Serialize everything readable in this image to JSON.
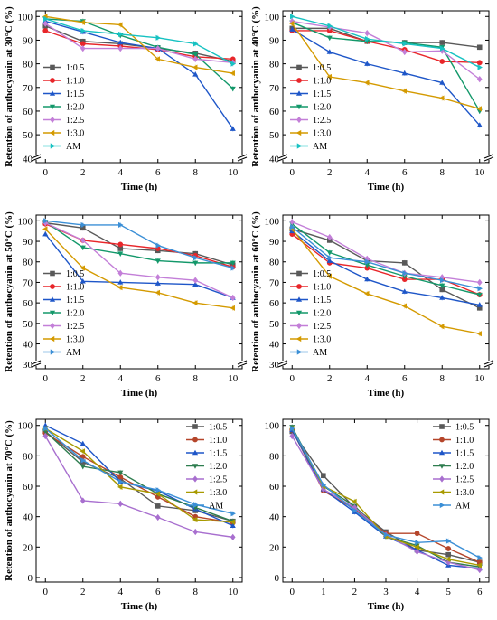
{
  "chart_data": [
    {
      "type": "line",
      "xlabel": "Time (h)",
      "ylabel": "Retention of anthocyanin at 30°C (%)",
      "ylim": [
        40,
        100
      ],
      "yticks": [
        "40",
        "50",
        "60",
        "70",
        "80",
        "90",
        "100"
      ],
      "x": [
        0,
        2,
        4,
        6,
        8,
        10
      ],
      "xticks": [
        "0",
        "2",
        "4",
        "6",
        "8",
        "10"
      ],
      "legend_position": "bottom-left",
      "series": [
        {
          "name": "1:0.5",
          "color": "#595959",
          "marker": "square",
          "values": [
            96,
            89.5,
            88.5,
            86.5,
            84.5,
            81
          ]
        },
        {
          "name": "1:1.0",
          "color": "#e8262a",
          "marker": "circle",
          "values": [
            94,
            88.5,
            87.5,
            86,
            83,
            82
          ]
        },
        {
          "name": "1:1.5",
          "color": "#1e56c8",
          "marker": "triangle-up",
          "values": [
            98,
            93.5,
            89,
            86.5,
            75.5,
            52.5
          ]
        },
        {
          "name": "1:2.0",
          "color": "#13986a",
          "marker": "triangle-down",
          "values": [
            99,
            98,
            92,
            87,
            84,
            69.5
          ]
        },
        {
          "name": "1:2.5",
          "color": "#c37fd8",
          "marker": "diamond",
          "values": [
            97,
            86.5,
            86.5,
            86.5,
            82,
            80.5
          ]
        },
        {
          "name": "1:3.0",
          "color": "#d49a00",
          "marker": "triangle-left",
          "values": [
            100,
            97.5,
            96.5,
            82,
            78.5,
            76
          ]
        },
        {
          "name": "AM",
          "color": "#17c2c2",
          "marker": "triangle-right",
          "values": [
            99,
            94,
            92.5,
            91,
            88.5,
            80
          ]
        }
      ]
    },
    {
      "type": "line",
      "xlabel": "Time (h)",
      "ylabel": "Retention of anthocyanin at 40°C (%)",
      "ylim": [
        40,
        100
      ],
      "yticks": [
        "40",
        "50",
        "60",
        "70",
        "80",
        "90",
        "100"
      ],
      "x": [
        0,
        2,
        4,
        6,
        8,
        10
      ],
      "xticks": [
        "0",
        "2",
        "4",
        "6",
        "8",
        "10"
      ],
      "legend_position": "bottom-left",
      "series": [
        {
          "name": "1:0.5",
          "color": "#595959",
          "marker": "square",
          "values": [
            95,
            95,
            89.5,
            89,
            89,
            87
          ]
        },
        {
          "name": "1:1.0",
          "color": "#e8262a",
          "marker": "circle",
          "values": [
            94,
            94,
            89.5,
            86,
            81,
            80.5
          ]
        },
        {
          "name": "1:1.5",
          "color": "#1e56c8",
          "marker": "triangle-up",
          "values": [
            94.5,
            85,
            80,
            76,
            72,
            54
          ]
        },
        {
          "name": "1:2.0",
          "color": "#13986a",
          "marker": "triangle-down",
          "values": [
            97.5,
            91,
            89.5,
            89,
            87,
            60
          ]
        },
        {
          "name": "1:2.5",
          "color": "#c37fd8",
          "marker": "diamond",
          "values": [
            98,
            95.5,
            93,
            85,
            85.5,
            73.5
          ]
        },
        {
          "name": "1:3.0",
          "color": "#d49a00",
          "marker": "triangle-left",
          "values": [
            97,
            74.5,
            72,
            68.5,
            65.5,
            61
          ]
        },
        {
          "name": "AM",
          "color": "#17c2c2",
          "marker": "triangle-right",
          "values": [
            100,
            96,
            90.5,
            88.5,
            86.5,
            78.5
          ]
        }
      ]
    },
    {
      "type": "line",
      "xlabel": "Time (h)",
      "ylabel": "Retention of anthocyanin at 50°C (%)",
      "ylim": [
        30,
        100
      ],
      "yticks": [
        "30",
        "40",
        "50",
        "60",
        "70",
        "80",
        "90",
        "100"
      ],
      "x": [
        0,
        2,
        4,
        6,
        8,
        10
      ],
      "xticks": [
        "0",
        "2",
        "4",
        "6",
        "8",
        "10"
      ],
      "legend_position": "bottom-left",
      "series": [
        {
          "name": "1:0.5",
          "color": "#595959",
          "marker": "square",
          "values": [
            99,
            96.5,
            86.5,
            85.5,
            84,
            78.5
          ]
        },
        {
          "name": "1:1.0",
          "color": "#e8262a",
          "marker": "circle",
          "values": [
            98.5,
            90.5,
            88.5,
            86.5,
            83,
            77.5
          ]
        },
        {
          "name": "1:1.5",
          "color": "#1e56c8",
          "marker": "triangle-up",
          "values": [
            93.5,
            70.5,
            70,
            69.5,
            69,
            62.5
          ]
        },
        {
          "name": "1:2.0",
          "color": "#13986a",
          "marker": "triangle-down",
          "values": [
            99.5,
            87,
            84,
            80.5,
            79.5,
            79.5
          ]
        },
        {
          "name": "1:2.5",
          "color": "#c37fd8",
          "marker": "diamond",
          "values": [
            99,
            90.5,
            74.5,
            72.5,
            71,
            62.5
          ]
        },
        {
          "name": "1:3.0",
          "color": "#d49a00",
          "marker": "triangle-left",
          "values": [
            96,
            77,
            67.5,
            65,
            60,
            57.5
          ]
        },
        {
          "name": "AM",
          "color": "#3b8fd6",
          "marker": "triangle-right",
          "values": [
            100,
            98,
            98,
            88,
            82,
            77
          ]
        }
      ]
    },
    {
      "type": "line",
      "xlabel": "Time (h)",
      "ylabel": "Retention of anthocyanin at 60°C (%)",
      "ylim": [
        30,
        100
      ],
      "yticks": [
        "30",
        "40",
        "50",
        "60",
        "70",
        "80",
        "90",
        "100"
      ],
      "x": [
        0,
        2,
        4,
        6,
        8,
        10
      ],
      "xticks": [
        "0",
        "2",
        "4",
        "6",
        "8",
        "10"
      ],
      "legend_position": "bottom-left",
      "series": [
        {
          "name": "1:0.5",
          "color": "#595959",
          "marker": "square",
          "values": [
            96,
            90.5,
            80.5,
            79.5,
            66.5,
            57.5
          ]
        },
        {
          "name": "1:1.0",
          "color": "#e8262a",
          "marker": "circle",
          "values": [
            93.5,
            79.5,
            77,
            71.5,
            71.5,
            64
          ]
        },
        {
          "name": "1:1.5",
          "color": "#1e56c8",
          "marker": "triangle-up",
          "values": [
            95,
            80.5,
            71.5,
            65.5,
            62.5,
            59
          ]
        },
        {
          "name": "1:2.0",
          "color": "#13986a",
          "marker": "triangle-down",
          "values": [
            98.5,
            84.5,
            78.5,
            73,
            68.5,
            64
          ]
        },
        {
          "name": "1:2.5",
          "color": "#c37fd8",
          "marker": "diamond",
          "values": [
            99.5,
            92,
            81.5,
            74.5,
            72.5,
            70
          ]
        },
        {
          "name": "1:3.0",
          "color": "#d49a00",
          "marker": "triangle-left",
          "values": [
            96,
            73,
            64.5,
            58.5,
            48.5,
            45
          ]
        },
        {
          "name": "AM",
          "color": "#3b8fd6",
          "marker": "triangle-right",
          "values": [
            97,
            82,
            80,
            74.5,
            71,
            67
          ]
        }
      ]
    },
    {
      "type": "line",
      "xlabel": "Time (h)",
      "ylabel": "Retention of anthocyanin at 70°C (%)",
      "ylim": [
        0,
        100
      ],
      "yticks": [
        "0",
        "20",
        "40",
        "60",
        "80",
        "100"
      ],
      "x": [
        0,
        2,
        4,
        6,
        8,
        10
      ],
      "xticks": [
        "0",
        "2",
        "4",
        "6",
        "8",
        "10"
      ],
      "legend_position": "top-right",
      "series": [
        {
          "name": "1:0.5",
          "color": "#595959",
          "marker": "square",
          "values": [
            96,
            76,
            65,
            47,
            44,
            37
          ]
        },
        {
          "name": "1:1.0",
          "color": "#b5452a",
          "marker": "circle",
          "values": [
            95,
            79.5,
            66,
            53,
            40,
            36
          ]
        },
        {
          "name": "1:1.5",
          "color": "#1e56c8",
          "marker": "triangle-up",
          "values": [
            100,
            88,
            63,
            57,
            45,
            34
          ]
        },
        {
          "name": "1:2.0",
          "color": "#2e7d4f",
          "marker": "triangle-down",
          "values": [
            96,
            73,
            69,
            55,
            46,
            37
          ]
        },
        {
          "name": "1:2.5",
          "color": "#a86fcf",
          "marker": "diamond",
          "values": [
            93,
            50.5,
            48.5,
            39.5,
            30,
            26.5
          ]
        },
        {
          "name": "1:3.0",
          "color": "#a89a00",
          "marker": "triangle-left",
          "values": [
            98,
            83,
            59.5,
            55,
            38,
            36.5
          ]
        },
        {
          "name": "AM",
          "color": "#3b8fd6",
          "marker": "triangle-right",
          "values": [
            98,
            77,
            63,
            57.5,
            48,
            42
          ]
        }
      ]
    },
    {
      "type": "line",
      "xlabel": "Time (h)",
      "ylabel": "",
      "ylim": [
        0,
        100
      ],
      "yticks": [
        "0",
        "20",
        "40",
        "60",
        "80",
        "100"
      ],
      "x": [
        0,
        1,
        2,
        3,
        4,
        5,
        6
      ],
      "xticks": [
        "0",
        "1",
        "2",
        "3",
        "4",
        "5",
        "6"
      ],
      "legend_position": "top-right",
      "series": [
        {
          "name": "1:0.5",
          "color": "#595959",
          "marker": "square",
          "values": [
            96,
            67,
            46,
            30,
            18,
            15,
            10
          ]
        },
        {
          "name": "1:1.0",
          "color": "#b5452a",
          "marker": "circle",
          "values": [
            97,
            57,
            45,
            29,
            29,
            19,
            10
          ]
        },
        {
          "name": "1:1.5",
          "color": "#1e56c8",
          "marker": "triangle-up",
          "values": [
            97,
            58,
            43,
            27,
            18,
            8,
            6
          ]
        },
        {
          "name": "1:2.0",
          "color": "#2e7d4f",
          "marker": "triangle-down",
          "values": [
            99,
            60,
            47,
            27,
            21,
            10,
            7
          ]
        },
        {
          "name": "1:2.5",
          "color": "#a86fcf",
          "marker": "diamond",
          "values": [
            93,
            58,
            46,
            28,
            17,
            10,
            5
          ]
        },
        {
          "name": "1:3.0",
          "color": "#a89a00",
          "marker": "triangle-left",
          "values": [
            98,
            60,
            50,
            27,
            20,
            12,
            8
          ]
        },
        {
          "name": "AM",
          "color": "#3b8fd6",
          "marker": "triangle-right",
          "values": [
            98,
            61,
            44,
            28,
            23,
            24,
            13
          ]
        }
      ]
    }
  ]
}
